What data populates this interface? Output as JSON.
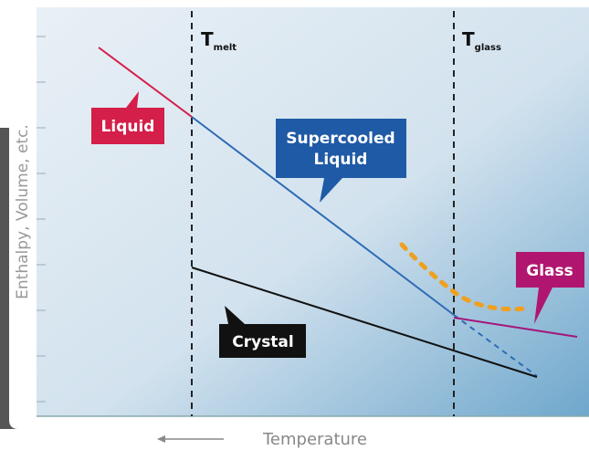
{
  "axes": {
    "y_label": "Enthalpy, Volume, etc.",
    "x_label": "Temperature"
  },
  "markers": [
    {
      "symbol": "T",
      "subscript": "melt"
    },
    {
      "symbol": "T",
      "subscript": "glass"
    }
  ],
  "labels": {
    "liquid": "Liquid",
    "supercooled": [
      "Supercooled",
      "Liquid"
    ],
    "crystal": "Crystal",
    "glass": "Glass"
  }
}
